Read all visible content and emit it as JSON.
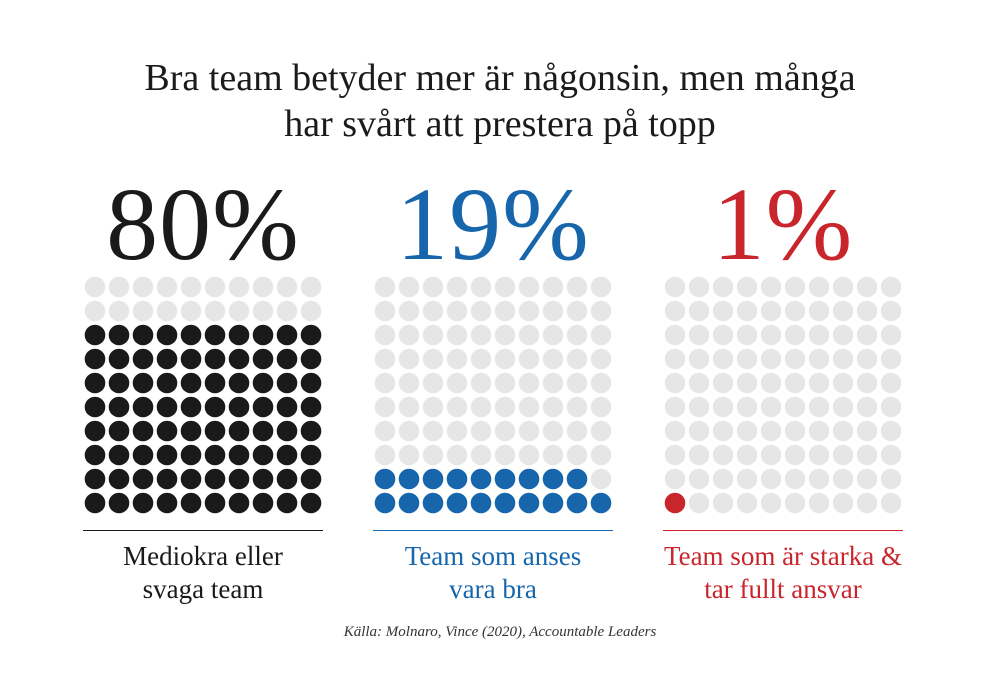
{
  "title_lines": [
    "Bra team betyder mer är någonsin, men många",
    "har svårt att prestera på topp"
  ],
  "chart_data": {
    "type": "waffle",
    "grid": {
      "rows": 10,
      "cols": 10
    },
    "empty_color": "#e6e6e6",
    "panels": [
      {
        "percent_label": "80%",
        "value": 80,
        "color": "#1a1a1a",
        "label_lines": [
          "Mediokra eller",
          "svaga team"
        ]
      },
      {
        "percent_label": "19%",
        "value": 19,
        "color": "#1766ac",
        "label_lines": [
          "Team som anses",
          "vara bra"
        ]
      },
      {
        "percent_label": "1%",
        "value": 1,
        "color": "#c8252c",
        "label_lines": [
          "Team som är starka &",
          "tar fullt ansvar"
        ]
      }
    ]
  },
  "source": "Källa: Molnaro, Vince (2020), Accountable Leaders"
}
